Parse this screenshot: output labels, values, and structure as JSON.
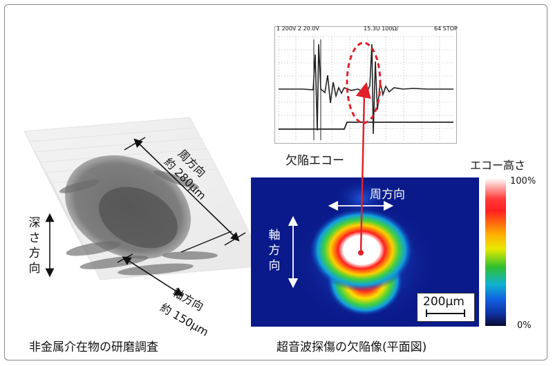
{
  "left_panel": {
    "caption": "非金属介在物の研磨調査",
    "depth_label": [
      "深",
      "さ",
      "方",
      "向"
    ],
    "circ_label": "周方向",
    "circ_size": "約 280μm",
    "axial_label": "軸方向",
    "axial_size": "約 150μm"
  },
  "oscilloscope": {
    "header_left": "1 200V  2 20.0V",
    "header_mid": "15.3U  100Ω/",
    "header_right": "64 STOP",
    "caption": "欠陥エコー"
  },
  "cscan": {
    "caption": "超音波探傷の欠陥像(平面図)",
    "circ_label": "周方向",
    "axial_label": [
      "軸",
      "方",
      "向"
    ],
    "scale_label": "200μm",
    "colorbar_title": "エコー高さ",
    "colorbar_max": "100%",
    "colorbar_min": "0%"
  },
  "colors": {
    "cscan_bg": "#0a1a8a",
    "marker_red": "#e0202a",
    "frame": "#888888"
  }
}
